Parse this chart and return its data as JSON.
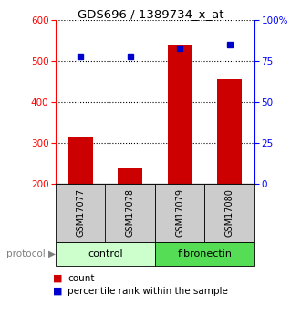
{
  "title": "GDS696 / 1389734_x_at",
  "samples": [
    "GSM17077",
    "GSM17078",
    "GSM17079",
    "GSM17080"
  ],
  "counts": [
    315,
    238,
    540,
    455
  ],
  "percentiles": [
    78,
    78,
    83,
    85
  ],
  "ylim_left": [
    200,
    600
  ],
  "ylim_right": [
    0,
    100
  ],
  "yticks_left": [
    200,
    300,
    400,
    500,
    600
  ],
  "yticks_right": [
    0,
    25,
    50,
    75,
    100
  ],
  "ytick_labels_right": [
    "0",
    "25",
    "50",
    "75",
    "100%"
  ],
  "bar_color": "#cc0000",
  "dot_color": "#0000cc",
  "protocol_light": "#ccffcc",
  "protocol_dark": "#55dd55",
  "sample_box_color": "#cccccc",
  "legend_count_label": "count",
  "legend_pct_label": "percentile rank within the sample",
  "bar_width": 0.5,
  "baseline": 200
}
